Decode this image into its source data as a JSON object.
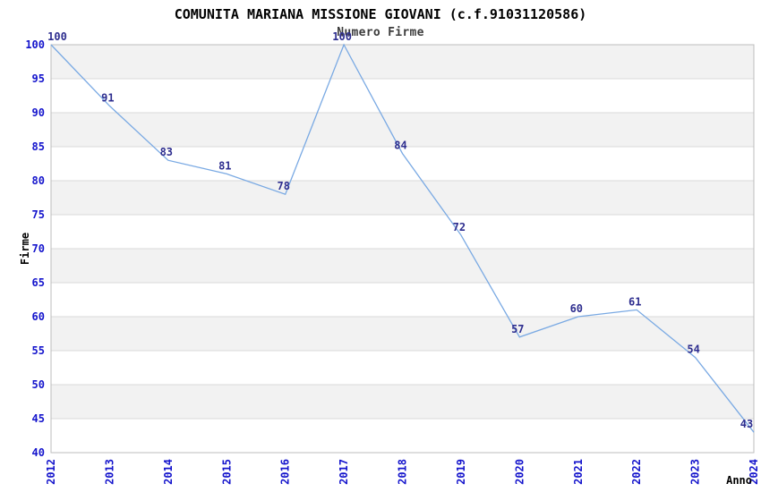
{
  "title": "COMUNITA MARIANA MISSIONE GIOVANI (c.f.91031120586)",
  "subtitle": "Numero Firme",
  "chart_data": {
    "type": "line",
    "x": [
      "2012",
      "2013",
      "2014",
      "2015",
      "2016",
      "2017",
      "2018",
      "2019",
      "2020",
      "2021",
      "2022",
      "2023",
      "2024"
    ],
    "series": [
      {
        "name": "Numero Firme",
        "values": [
          100,
          91,
          83,
          81,
          78,
          100,
          84,
          72,
          57,
          60,
          61,
          54,
          43
        ]
      }
    ],
    "title": "COMUNITA MARIANA MISSIONE GIOVANI (c.f.91031120586)",
    "subtitle": "Numero Firme",
    "xlabel": "Anno",
    "ylabel": "Firme",
    "ylim": [
      40,
      100
    ],
    "ytick_step": 5,
    "yticks": [
      40,
      45,
      50,
      55,
      60,
      65,
      70,
      75,
      80,
      85,
      90,
      95,
      100
    ],
    "grid": "horizontal-bands-alternating",
    "legend": "none",
    "data_labels_shown": true,
    "colors": {
      "line": "#79a9e3",
      "tick_label": "#1414cc",
      "value_label": "#2e2e8f",
      "band": "#f2f2f2",
      "grid": "#d9d9d9",
      "border": "#bdbdbd",
      "title": "#000000",
      "subtitle": "#3c3c3c",
      "axis_label": "#000000"
    }
  }
}
